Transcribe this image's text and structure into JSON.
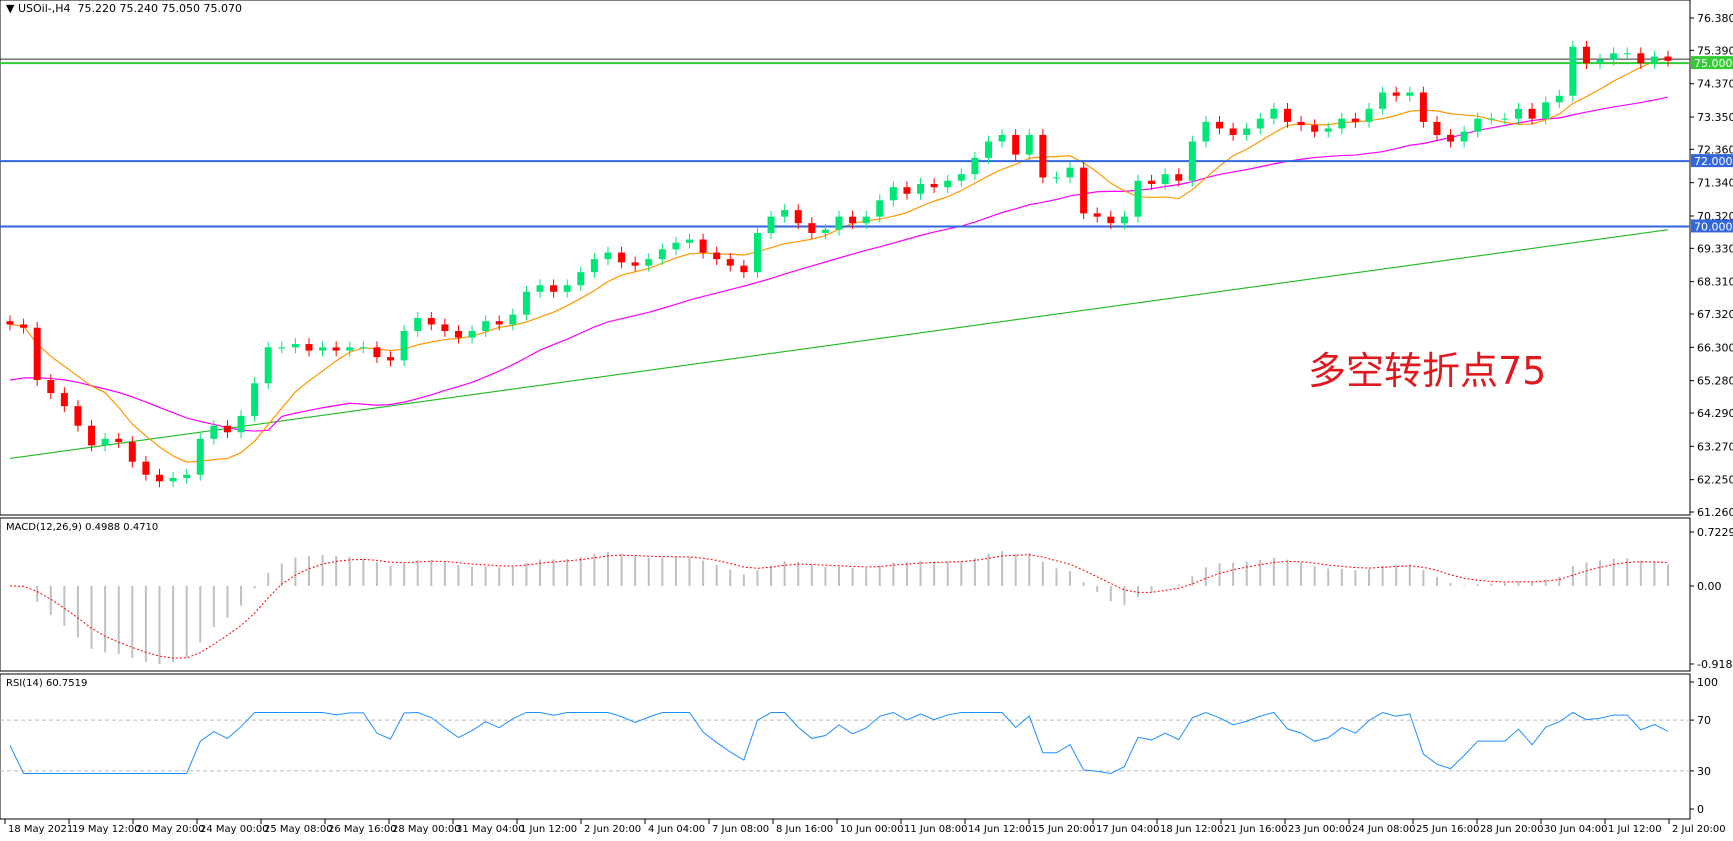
{
  "header": {
    "symbol": "USOil-,H4",
    "ohlc": "75.220 75.240 75.050 75.070",
    "menu_icon": "triangle-down-icon"
  },
  "annotation": "多空转折点75",
  "macd_label": "MACD(12,26,9) 0.4988 0.4710",
  "rsi_label": "RSI(14) 60.7519",
  "colors": {
    "bull": "#00e676",
    "bear": "#ff0000",
    "ma_fast": "#ff9900",
    "ma_mid": "#ff00ff",
    "ma_slow": "#22bb22",
    "level_blue": "#3366dd",
    "level_green": "#33cc33",
    "macd_hist": "#c0c0c0",
    "macd_signal": "#ff0000",
    "rsi": "#1e90ff"
  },
  "price_axis": [
    "76.380",
    "75.390",
    "74.370",
    "73.350",
    "72.360",
    "71.340",
    "70.320",
    "69.330",
    "68.310",
    "67.320",
    "66.300",
    "65.280",
    "64.290",
    "63.270",
    "62.250",
    "61.260"
  ],
  "macd_axis": [
    "0.7229",
    "0.00",
    "-0.9185"
  ],
  "rsi_axis": [
    "100",
    "70",
    "30",
    "0"
  ],
  "levels": [
    {
      "value": 75.0,
      "label": "75.000",
      "color": "#33cc33"
    },
    {
      "value": 72.0,
      "label": "72.000",
      "color": "#3366dd"
    },
    {
      "value": 70.0,
      "label": "70.000",
      "color": "#3366dd"
    }
  ],
  "time_axis": [
    "18 May 2021",
    "19 May 12:00",
    "20 May 20:00",
    "24 May 00:00",
    "25 May 08:00",
    "26 May 16:00",
    "28 May 00:00",
    "31 May 04:00",
    "1 Jun 12:00",
    "2 Jun 20:00",
    "4 Jun 04:00",
    "7 Jun 08:00",
    "8 Jun 16:00",
    "10 Jun 00:00",
    "11 Jun 08:00",
    "14 Jun 12:00",
    "15 Jun 20:00",
    "17 Jun 04:00",
    "18 Jun 12:00",
    "21 Jun 16:00",
    "23 Jun 00:00",
    "24 Jun 08:00",
    "25 Jun 16:00",
    "28 Jun 20:00",
    "30 Jun 04:00",
    "1 Jul 12:00",
    "2 Jul 20:00"
  ],
  "chart_data": {
    "type": "candlestick",
    "ylim": [
      61.26,
      76.38
    ],
    "closes": [
      67.0,
      66.9,
      65.3,
      64.9,
      64.5,
      63.9,
      63.3,
      63.5,
      63.4,
      62.8,
      62.4,
      62.2,
      62.3,
      62.4,
      63.5,
      63.9,
      63.7,
      64.2,
      65.2,
      66.3,
      66.3,
      66.4,
      66.2,
      66.3,
      66.2,
      66.3,
      66.3,
      66.0,
      65.9,
      66.8,
      67.2,
      67.0,
      66.8,
      66.6,
      66.8,
      67.1,
      67.0,
      67.3,
      68.0,
      68.2,
      68.0,
      68.2,
      68.6,
      69.0,
      69.2,
      68.9,
      68.8,
      69.0,
      69.3,
      69.5,
      69.6,
      69.2,
      69.0,
      68.8,
      68.6,
      69.8,
      70.3,
      70.5,
      70.1,
      69.8,
      69.9,
      70.3,
      70.1,
      70.3,
      70.8,
      71.2,
      71.0,
      71.3,
      71.2,
      71.4,
      71.6,
      72.1,
      72.6,
      72.8,
      72.2,
      72.8,
      71.5,
      71.5,
      71.8,
      70.4,
      70.3,
      70.1,
      70.3,
      71.4,
      71.3,
      71.6,
      71.4,
      72.6,
      73.2,
      73.0,
      72.8,
      73.0,
      73.3,
      73.6,
      73.2,
      73.1,
      72.9,
      73.0,
      73.3,
      73.2,
      73.6,
      74.1,
      74.0,
      74.1,
      73.2,
      72.8,
      72.6,
      72.9,
      73.3,
      73.3,
      73.3,
      73.6,
      73.3,
      73.8,
      74.0,
      75.5,
      75.0,
      75.1,
      75.3,
      75.3,
      75.0,
      75.2,
      75.07
    ],
    "ma_slow": {
      "start": 62.9,
      "end": 69.9
    },
    "macd": {
      "fast": 12,
      "slow": 26,
      "signal": 9,
      "ylim": [
        -0.9185,
        0.7229
      ]
    },
    "rsi": {
      "period": 14,
      "levels": [
        70,
        30
      ],
      "ylim": [
        0,
        100
      ]
    }
  }
}
